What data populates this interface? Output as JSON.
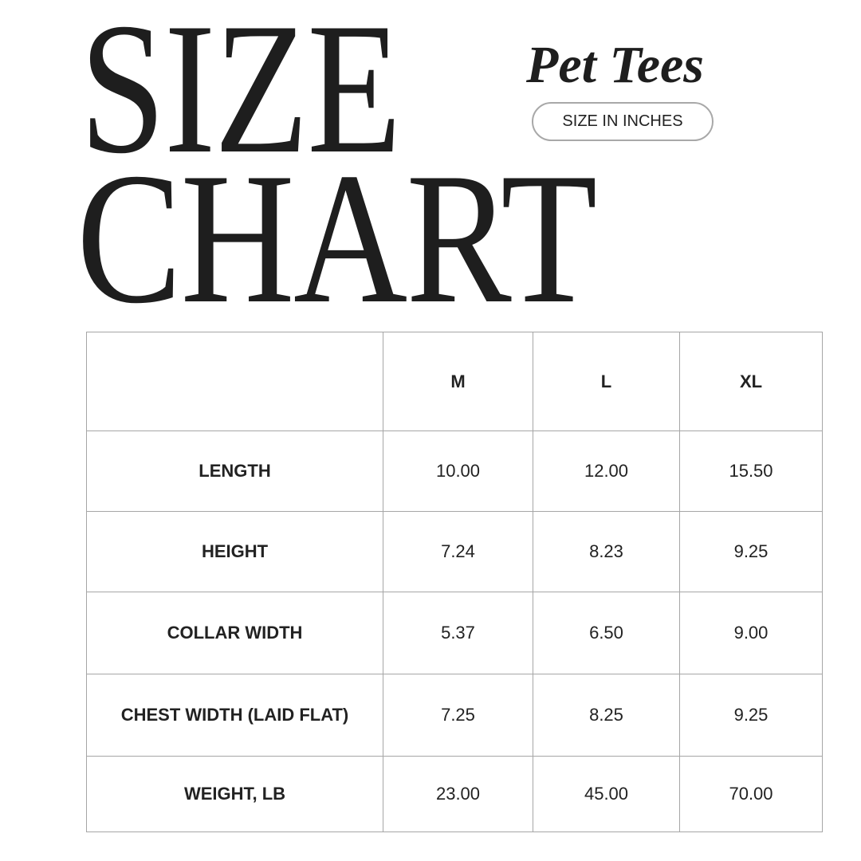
{
  "title": {
    "line1": "SIZE",
    "line2": "CHART"
  },
  "brand": "Pet Tees",
  "unit_badge": "SIZE IN INCHES",
  "table": {
    "columns": [
      "",
      "M",
      "L",
      "XL"
    ],
    "rows": [
      {
        "label": "LENGTH",
        "values": [
          "10.00",
          "12.00",
          "15.50"
        ]
      },
      {
        "label": "HEIGHT",
        "values": [
          "7.24",
          "8.23",
          "9.25"
        ]
      },
      {
        "label": "COLLAR WIDTH",
        "values": [
          "5.37",
          "6.50",
          "9.00"
        ]
      },
      {
        "label": "CHEST WIDTH (LAID FLAT)",
        "values": [
          "7.25",
          "8.25",
          "9.25"
        ]
      },
      {
        "label": "WEIGHT, LB",
        "values": [
          "23.00",
          "45.00",
          "70.00"
        ]
      }
    ]
  }
}
